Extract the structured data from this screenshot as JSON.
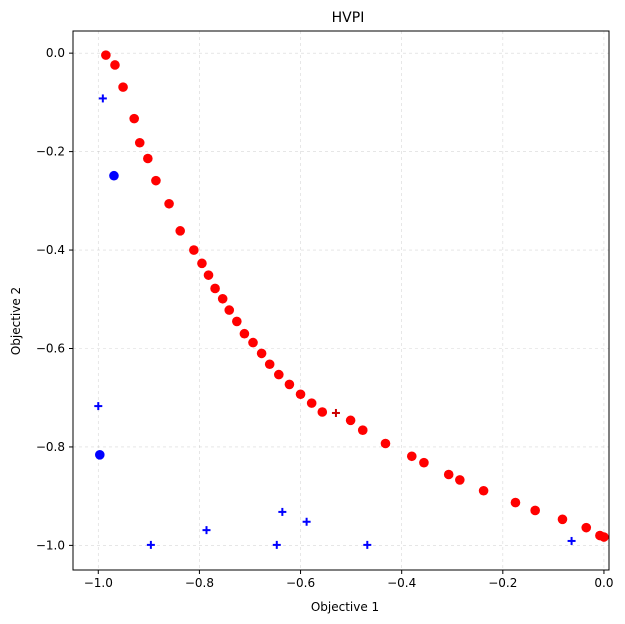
{
  "chart_data": {
    "type": "scatter",
    "title": "HVPI",
    "xlabel": "Objective 1",
    "ylabel": "Objective 2",
    "xlim": [
      -1.05,
      0.01
    ],
    "ylim": [
      -1.05,
      0.045
    ],
    "grid": true,
    "xticks": [
      {
        "value": -1.0,
        "label": "−1.0"
      },
      {
        "value": -0.8,
        "label": "−0.8"
      },
      {
        "value": -0.6,
        "label": "−0.6"
      },
      {
        "value": -0.4,
        "label": "−0.4"
      },
      {
        "value": -0.2,
        "label": "−0.2"
      },
      {
        "value": 0.0,
        "label": "0.0"
      }
    ],
    "yticks": [
      {
        "value": 0.0,
        "label": "0.0"
      },
      {
        "value": -0.2,
        "label": "−0.2"
      },
      {
        "value": -0.4,
        "label": "−0.4"
      },
      {
        "value": -0.6,
        "label": "−0.6"
      },
      {
        "value": -0.8,
        "label": "−0.8"
      },
      {
        "value": -1.0,
        "label": "−1.0"
      }
    ],
    "series": [
      {
        "marker": "circle",
        "color": "#ff0000",
        "points": [
          [
            -0.985,
            -0.004
          ],
          [
            -0.967,
            -0.024
          ],
          [
            -0.951,
            -0.069
          ],
          [
            -0.929,
            -0.133
          ],
          [
            -0.918,
            -0.182
          ],
          [
            -0.902,
            -0.214
          ],
          [
            -0.886,
            -0.259
          ],
          [
            -0.86,
            -0.306
          ],
          [
            -0.838,
            -0.361
          ],
          [
            -0.811,
            -0.4
          ],
          [
            -0.795,
            -0.427
          ],
          [
            -0.782,
            -0.451
          ],
          [
            -0.769,
            -0.478
          ],
          [
            -0.754,
            -0.499
          ],
          [
            -0.741,
            -0.522
          ],
          [
            -0.726,
            -0.545
          ],
          [
            -0.711,
            -0.57
          ],
          [
            -0.694,
            -0.588
          ],
          [
            -0.677,
            -0.61
          ],
          [
            -0.661,
            -0.632
          ],
          [
            -0.643,
            -0.653
          ],
          [
            -0.622,
            -0.673
          ],
          [
            -0.6,
            -0.693
          ],
          [
            -0.578,
            -0.711
          ],
          [
            -0.557,
            -0.729
          ],
          [
            -0.501,
            -0.746
          ],
          [
            -0.477,
            -0.766
          ],
          [
            -0.432,
            -0.793
          ],
          [
            -0.38,
            -0.819
          ],
          [
            -0.356,
            -0.832
          ],
          [
            -0.307,
            -0.856
          ],
          [
            -0.285,
            -0.867
          ],
          [
            -0.238,
            -0.889
          ],
          [
            -0.175,
            -0.913
          ],
          [
            -0.136,
            -0.929
          ],
          [
            -0.082,
            -0.947
          ],
          [
            -0.035,
            -0.964
          ],
          [
            -0.008,
            -0.98
          ],
          [
            0.0,
            -0.983
          ]
        ]
      },
      {
        "marker": "circle",
        "color": "#0000ff",
        "points": [
          [
            -0.969,
            -0.249
          ],
          [
            -0.997,
            -0.816
          ]
        ]
      },
      {
        "marker": "plus",
        "color": "#0000ff",
        "points": [
          [
            -0.991,
            -0.092
          ],
          [
            -1.0,
            -0.717
          ],
          [
            -0.896,
            -0.999
          ],
          [
            -0.786,
            -0.969
          ],
          [
            -0.647,
            -0.999
          ],
          [
            -0.636,
            -0.932
          ],
          [
            -0.588,
            -0.952
          ],
          [
            -0.468,
            -0.999
          ],
          [
            -0.064,
            -0.991
          ]
        ]
      },
      {
        "marker": "plus",
        "color": "#cc0000",
        "points": [
          [
            -0.53,
            -0.731
          ]
        ]
      }
    ]
  }
}
